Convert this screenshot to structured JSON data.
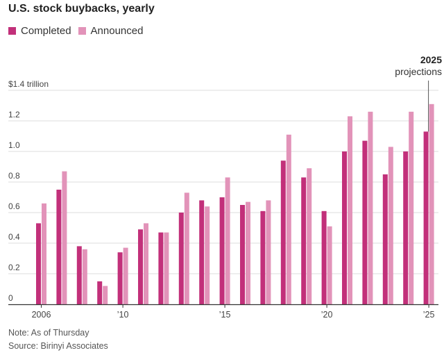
{
  "header": {
    "title": "U.S. stock buybacks, yearly"
  },
  "legend": {
    "completed": "Completed",
    "announced": "Announced"
  },
  "colors": {
    "completed": "#c2307a",
    "announced": "#e293b9",
    "grid": "#dcdcdc",
    "axis": "#333333"
  },
  "annotation": {
    "year": "2025",
    "label": "projections"
  },
  "notes": {
    "note": "Note: As of Thursday",
    "source": "Source: Birinyi Associates"
  },
  "chart_data": {
    "type": "bar",
    "title": "U.S. stock buybacks, yearly",
    "ylabel": "$ trillion",
    "ylim": [
      0,
      1.4
    ],
    "yticks": [
      0,
      0.2,
      0.4,
      0.6,
      0.8,
      1.0,
      1.2,
      1.4
    ],
    "ytick_labels": [
      "0",
      "0.2",
      "0.4",
      "0.6",
      "0.8",
      "1.0",
      "1.2",
      "$1.4 trillion"
    ],
    "categories": [
      "2006",
      "2007",
      "2008",
      "2009",
      "2010",
      "2011",
      "2012",
      "2013",
      "2014",
      "2015",
      "2016",
      "2017",
      "2018",
      "2019",
      "2020",
      "2021",
      "2022",
      "2023",
      "2024",
      "2025"
    ],
    "xtick_labels": [
      {
        "category": "2006",
        "label": "2006"
      },
      {
        "category": "2010",
        "label": "’10"
      },
      {
        "category": "2015",
        "label": "’15"
      },
      {
        "category": "2020",
        "label": "’20"
      },
      {
        "category": "2025",
        "label": "’25"
      }
    ],
    "series": [
      {
        "name": "Completed",
        "values": [
          0.53,
          0.75,
          0.38,
          0.15,
          0.34,
          0.49,
          0.47,
          0.6,
          0.68,
          0.7,
          0.65,
          0.61,
          0.94,
          0.83,
          0.61,
          1.0,
          1.07,
          0.85,
          1.0,
          1.13
        ]
      },
      {
        "name": "Announced",
        "values": [
          0.66,
          0.87,
          0.36,
          0.12,
          0.37,
          0.53,
          0.47,
          0.73,
          0.64,
          0.83,
          0.67,
          0.68,
          1.11,
          0.89,
          0.51,
          1.23,
          1.26,
          1.03,
          1.26,
          1.31
        ]
      }
    ]
  }
}
